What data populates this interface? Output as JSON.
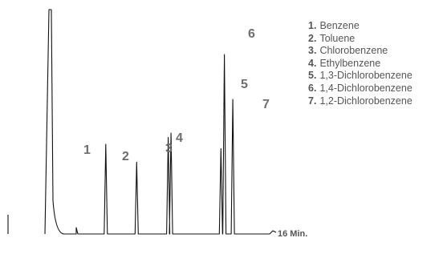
{
  "chart_data": {
    "type": "line",
    "x_range_min": [
      0,
      16
    ],
    "x_end_label": "16 Min.",
    "peaks": [
      {
        "label": "1",
        "time_min": 4.1,
        "height": 0.4
      },
      {
        "label": "2",
        "time_min": 6.3,
        "height": 0.32
      },
      {
        "label": "3",
        "time_min": 8.55,
        "height": 0.43
      },
      {
        "label": "4",
        "time_min": 8.75,
        "height": 0.45
      },
      {
        "label": "5",
        "time_min": 12.3,
        "height": 0.38
      },
      {
        "label": "6",
        "time_min": 12.55,
        "height": 0.8
      },
      {
        "label": "7",
        "time_min": 13.15,
        "height": 0.6
      }
    ],
    "legend": [
      {
        "num": "1.",
        "name": "Benzene"
      },
      {
        "num": "2.",
        "name": "Toluene"
      },
      {
        "num": "3.",
        "name": "Chlorobenzene"
      },
      {
        "num": "4.",
        "name": "Ethylbenzene"
      },
      {
        "num": "5.",
        "name": "1,3-Dichlorobenzene"
      },
      {
        "num": "6.",
        "name": "1,4-Dichlorobenzene"
      },
      {
        "num": "7.",
        "name": "1,2-Dichlorobenzene"
      }
    ],
    "line_color": "#111111",
    "label_color": "#6e6e6e"
  }
}
